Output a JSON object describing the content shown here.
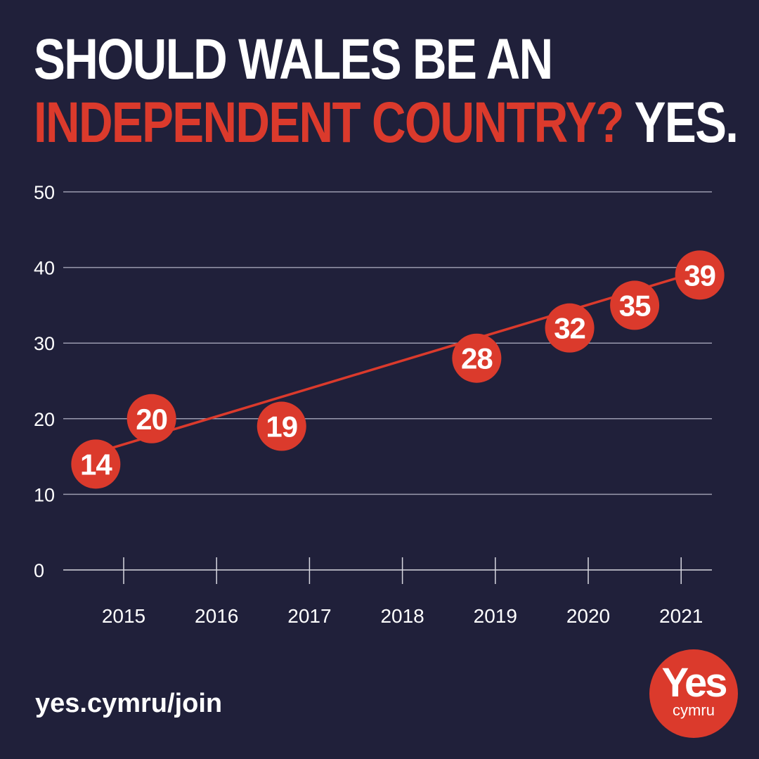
{
  "headline": {
    "line1": "SHOULD WALES BE AN",
    "line2_red": "INDEPENDENT COUNTRY?",
    "line2_white": " YES."
  },
  "footer": {
    "url": "yes.cymru/join",
    "logo_main": "Yes",
    "logo_sub": "cymru"
  },
  "colors": {
    "background": "#20203a",
    "accent": "#db3a2c",
    "text": "#ffffff",
    "grid": "#9a9aae"
  },
  "chart_data": {
    "type": "scatter",
    "title": "",
    "xlabel": "",
    "ylabel": "",
    "ylim": [
      0,
      50
    ],
    "yticks": [
      0,
      10,
      20,
      30,
      40,
      50
    ],
    "xlim": [
      2014.35,
      2021.35
    ],
    "xticks": [
      2015,
      2016,
      2017,
      2018,
      2019,
      2020,
      2021
    ],
    "grid": true,
    "legend": "none",
    "points": [
      {
        "x": 2014.7,
        "y": 14,
        "label": "14"
      },
      {
        "x": 2015.3,
        "y": 20,
        "label": "20"
      },
      {
        "x": 2016.7,
        "y": 19,
        "label": "19"
      },
      {
        "x": 2018.8,
        "y": 28,
        "label": "28"
      },
      {
        "x": 2019.8,
        "y": 32,
        "label": "32"
      },
      {
        "x": 2020.5,
        "y": 35,
        "label": "35"
      },
      {
        "x": 2021.2,
        "y": 39,
        "label": "39"
      }
    ],
    "trendline": {
      "start": {
        "x": 2014.7,
        "y": 15.5
      },
      "end": {
        "x": 2021.2,
        "y": 39.5
      }
    }
  }
}
